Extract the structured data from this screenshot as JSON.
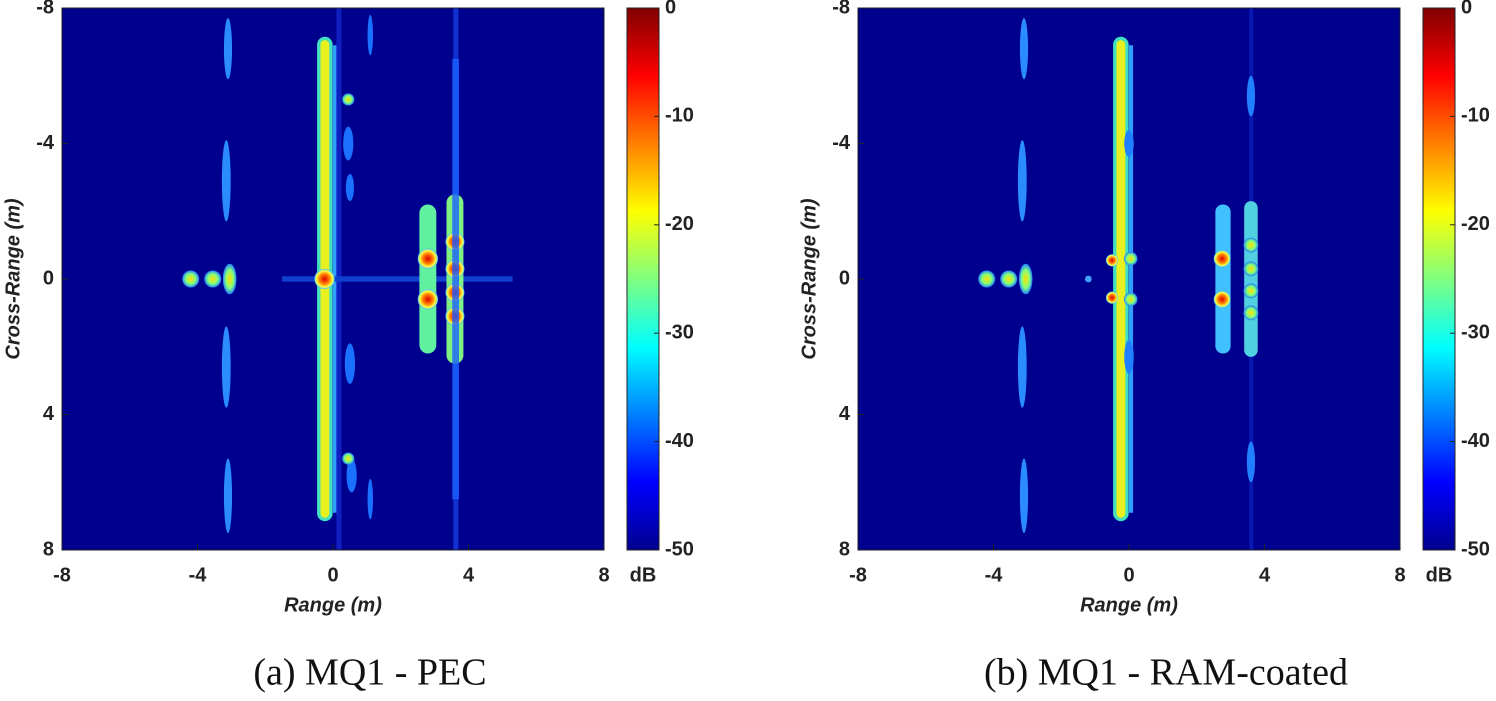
{
  "chart_data": [
    {
      "type": "heatmap",
      "caption": "(a) MQ1 - PEC",
      "xlabel": "Range (m)",
      "ylabel": "Cross-Range (m)",
      "xlim": [
        -8,
        8
      ],
      "ylim": [
        8,
        -8
      ],
      "xticks": [
        -8,
        -4,
        0,
        4,
        8
      ],
      "yticks": [
        -8,
        -4,
        0,
        4,
        8
      ],
      "colormap": "jet",
      "clim": [
        -50,
        0
      ],
      "cticks": [
        -50,
        -40,
        -30,
        -20,
        -10,
        0
      ],
      "clabel": "dB"
    },
    {
      "type": "heatmap",
      "caption": "(b) MQ1 - RAM-coated",
      "xlabel": "Range (m)",
      "ylabel": "Cross-Range (m)",
      "xlim": [
        -8,
        8
      ],
      "ylim": [
        8,
        -8
      ],
      "xticks": [
        -8,
        -4,
        0,
        4,
        8
      ],
      "yticks": [
        -8,
        -4,
        0,
        4,
        8
      ],
      "colormap": "jet",
      "clim": [
        -50,
        0
      ],
      "cticks": [
        -50,
        -40,
        -30,
        -20,
        -10,
        0
      ],
      "clabel": "dB"
    }
  ]
}
